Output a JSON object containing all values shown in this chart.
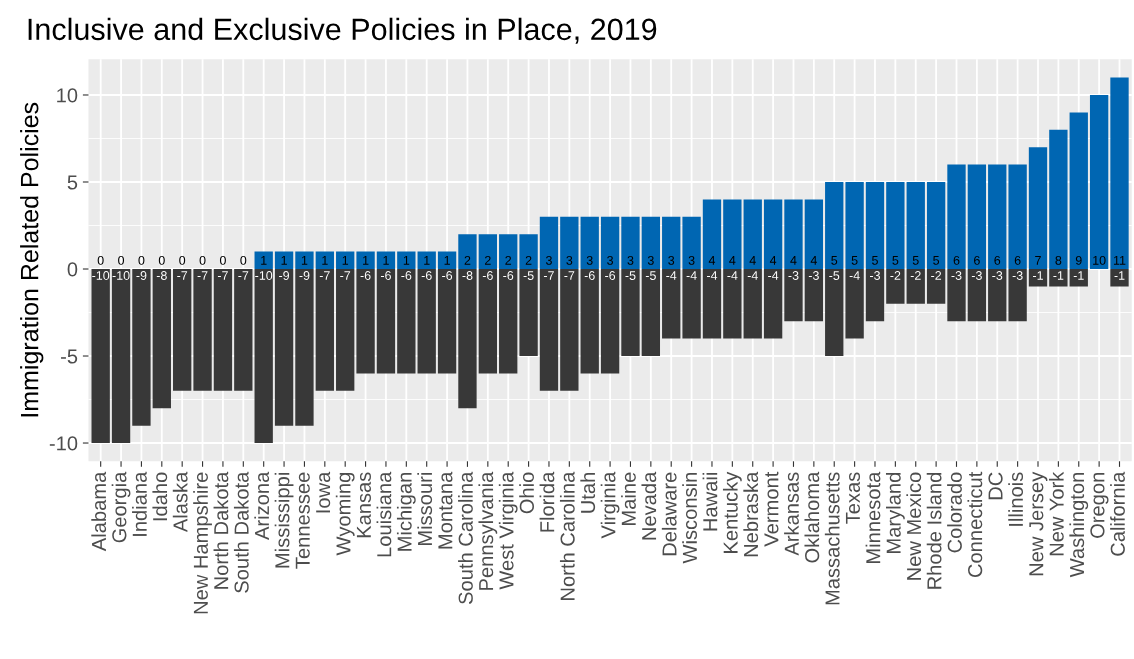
{
  "chart_data": {
    "type": "bar",
    "title": "Inclusive and Exclusive Policies in Place, 2019",
    "ylabel": "Immigration Related Policies",
    "stacked": true,
    "categories": [
      "Alabama",
      "Georgia",
      "Indiana",
      "Idaho",
      "Alaska",
      "New Hampshire",
      "North Dakota",
      "South Dakota",
      "Arizona",
      "Mississippi",
      "Tennessee",
      "Iowa",
      "Wyoming",
      "Kansas",
      "Louisiana",
      "Michigan",
      "Missouri",
      "Montana",
      "South Carolina",
      "Pennsylvania",
      "West Virginia",
      "Ohio",
      "Florida",
      "North Carolina",
      "Utah",
      "Virginia",
      "Maine",
      "Nevada",
      "Delaware",
      "Wisconsin",
      "Hawaii",
      "Kentucky",
      "Nebraska",
      "Vermont",
      "Arkansas",
      "Oklahoma",
      "Massachusetts",
      "Texas",
      "Minnesota",
      "Maryland",
      "New Mexico",
      "Rhode Island",
      "Colorado",
      "Connecticut",
      "DC",
      "Illinois",
      "New Jersey",
      "New York",
      "Washington",
      "Oregon",
      "California"
    ],
    "series": [
      {
        "color": "#0066b2",
        "values": [
          0,
          0,
          0,
          0,
          0,
          0,
          0,
          0,
          1,
          1,
          1,
          1,
          1,
          1,
          1,
          1,
          1,
          1,
          2,
          2,
          2,
          2,
          3,
          3,
          3,
          3,
          3,
          3,
          3,
          3,
          4,
          4,
          4,
          4,
          4,
          4,
          5,
          5,
          5,
          5,
          5,
          5,
          6,
          6,
          6,
          6,
          7,
          8,
          9,
          10,
          11
        ],
        "value_labels": [
          "0",
          "0",
          "0",
          "0",
          "0",
          "0",
          "0",
          "0",
          "1",
          "1",
          "1",
          "1",
          "1",
          "1",
          "1",
          "1",
          "1",
          "1",
          "2",
          "2",
          "2",
          "2",
          "3",
          "3",
          "3",
          "3",
          "3",
          "3",
          "3",
          "3",
          "4",
          "4",
          "4",
          "4",
          "4",
          "4",
          "5",
          "5",
          "5",
          "5",
          "5",
          "5",
          "6",
          "6",
          "6",
          "6",
          "7",
          "8",
          "9",
          "10",
          "11"
        ]
      },
      {
        "color": "#383838",
        "values": [
          -10,
          -10,
          -9,
          -8,
          -7,
          -7,
          -7,
          -7,
          -10,
          -9,
          -9,
          -7,
          -7,
          -6,
          -6,
          -6,
          -6,
          -6,
          -8,
          -6,
          -6,
          -5,
          -7,
          -7,
          -6,
          -6,
          -5,
          -5,
          -4,
          -4,
          -4,
          -4,
          -4,
          -4,
          -3,
          -3,
          -5,
          -4,
          -3,
          -2,
          -2,
          -2,
          -3,
          -3,
          -3,
          -3,
          -1,
          -1,
          -1,
          0,
          -1
        ],
        "value_labels": [
          "-10",
          "-10",
          "-9",
          "-8",
          "-7",
          "-7",
          "-7",
          "-7",
          "-10",
          "-9",
          "-9",
          "-7",
          "-7",
          "-6",
          "-6",
          "-6",
          "-6",
          "-6",
          "-8",
          "-6",
          "-6",
          "-5",
          "-7",
          "-7",
          "-6",
          "-6",
          "-5",
          "-5",
          "-4",
          "-4",
          "-4",
          "-4",
          "-4",
          "-4",
          "-3",
          "-3",
          "-5",
          "-4",
          "-3",
          "-2",
          "-2",
          "-2",
          "-3",
          "-3",
          "-3",
          "-3",
          "-1",
          "-1",
          "-1",
          null,
          "-1"
        ]
      }
    ],
    "ylim": [
      -11.05,
      12.05
    ],
    "yticks": [
      -10,
      -5,
      0,
      5,
      10
    ],
    "grid": true
  }
}
